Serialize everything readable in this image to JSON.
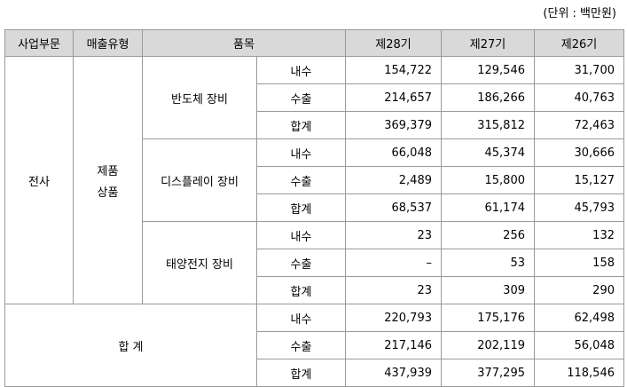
{
  "unit_label": "(단위 : 백만원)",
  "headers": {
    "segment": "사업부문",
    "sales_type": "매출유형",
    "item": "품목",
    "fy28": "제28기",
    "fy27": "제27기",
    "fy26": "제26기"
  },
  "segment_name": "전사",
  "sales_type_line1": "제품",
  "sales_type_line2": "상품",
  "total_label": "합 계",
  "groups": [
    {
      "item": "반도체 장비",
      "rows": [
        {
          "type": "내수",
          "v28": "154,722",
          "v27": "129,546",
          "v26": "31,700"
        },
        {
          "type": "수출",
          "v28": "214,657",
          "v27": "186,266",
          "v26": "40,763"
        },
        {
          "type": "합계",
          "v28": "369,379",
          "v27": "315,812",
          "v26": "72,463"
        }
      ]
    },
    {
      "item": "디스플레이 장비",
      "rows": [
        {
          "type": "내수",
          "v28": "66,048",
          "v27": "45,374",
          "v26": "30,666"
        },
        {
          "type": "수출",
          "v28": "2,489",
          "v27": "15,800",
          "v26": "15,127"
        },
        {
          "type": "합계",
          "v28": "68,537",
          "v27": "61,174",
          "v26": "45,793"
        }
      ]
    },
    {
      "item": "태양전지 장비",
      "rows": [
        {
          "type": "내수",
          "v28": "23",
          "v27": "256",
          "v26": "132"
        },
        {
          "type": "수출",
          "v28": "–",
          "v27": "53",
          "v26": "158"
        },
        {
          "type": "합계",
          "v28": "23",
          "v27": "309",
          "v26": "290"
        }
      ]
    },
    {
      "item": "합 계",
      "rows": [
        {
          "type": "내수",
          "v28": "220,793",
          "v27": "175,176",
          "v26": "62,498"
        },
        {
          "type": "수출",
          "v28": "217,146",
          "v27": "202,119",
          "v26": "56,048"
        },
        {
          "type": "합계",
          "v28": "437,939",
          "v27": "377,295",
          "v26": "118,546"
        }
      ]
    }
  ]
}
